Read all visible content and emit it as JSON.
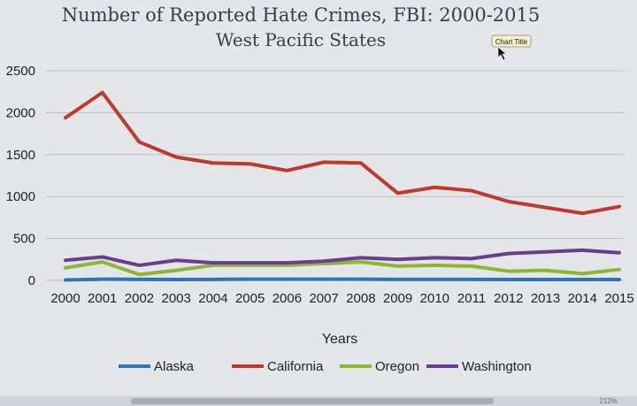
{
  "chart_data": {
    "type": "line",
    "title": "Number of Reported Hate Crimes, FBI: 2000-2015",
    "subtitle": "West Pacific States",
    "xlabel": "Years",
    "ylabel": "",
    "ylim": [
      0,
      2500
    ],
    "yticks": [
      "0",
      "500",
      "1000",
      "1500",
      "2000",
      "2500"
    ],
    "categories": [
      "2000",
      "2001",
      "2002",
      "2003",
      "2004",
      "2005",
      "2006",
      "2007",
      "2008",
      "2009",
      "2010",
      "2011",
      "2012",
      "2013",
      "2014",
      "2015"
    ],
    "grid": true,
    "legend_position": "bottom",
    "series": [
      {
        "name": "Alaska",
        "color": "#2e75b6",
        "values": [
          5,
          15,
          12,
          10,
          12,
          15,
          14,
          15,
          15,
          12,
          12,
          12,
          10,
          10,
          10,
          10
        ]
      },
      {
        "name": "California",
        "color": "#c0392b",
        "values": [
          1940,
          2240,
          1650,
          1470,
          1400,
          1390,
          1310,
          1410,
          1400,
          1040,
          1110,
          1070,
          940,
          870,
          800,
          880
        ]
      },
      {
        "name": "Oregon",
        "color": "#8ab833",
        "values": [
          150,
          220,
          70,
          120,
          180,
          180,
          180,
          200,
          220,
          170,
          180,
          170,
          110,
          120,
          80,
          130
        ]
      },
      {
        "name": "Washington",
        "color": "#6a3d8f",
        "values": [
          240,
          280,
          180,
          240,
          210,
          210,
          210,
          230,
          270,
          250,
          270,
          260,
          320,
          340,
          360,
          330
        ]
      }
    ]
  },
  "tooltip": {
    "label": "Chart Title"
  },
  "status": {
    "zoom": "212%"
  }
}
